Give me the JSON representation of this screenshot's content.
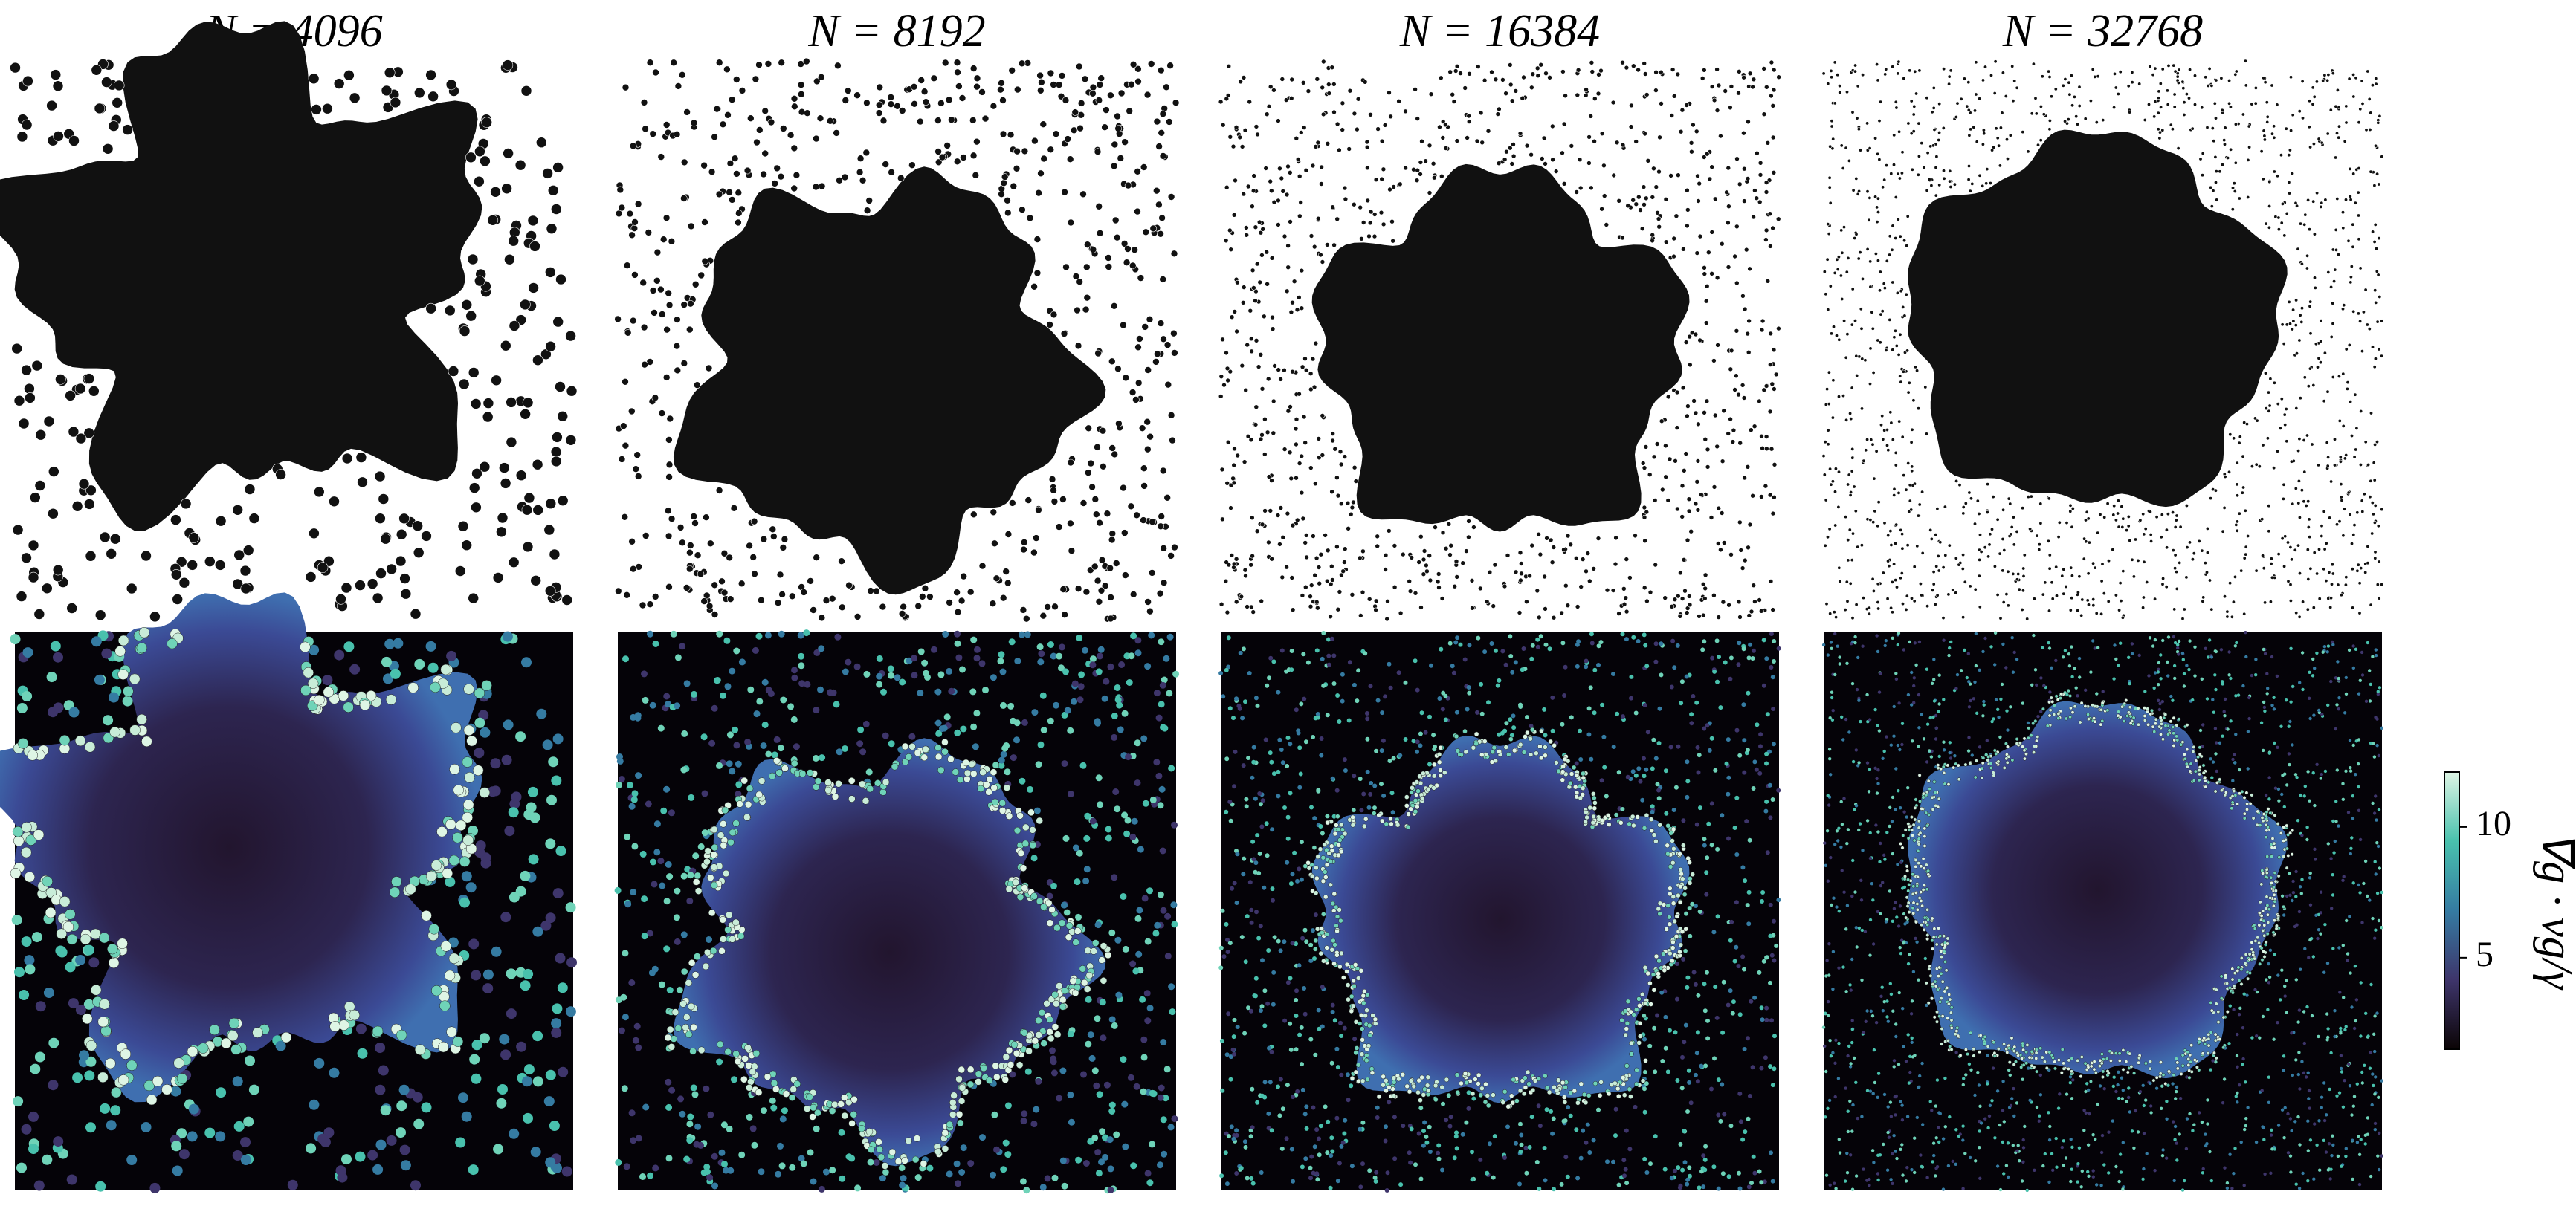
{
  "panels": [
    {
      "title": "N = 4096"
    },
    {
      "title": "N = 8192"
    },
    {
      "title": "N = 16384"
    },
    {
      "title": "N = 32768"
    }
  ],
  "colorbar": {
    "label": "∇g · vg/γ",
    "lim": [
      1.5,
      12.1
    ],
    "ticks": [
      5,
      10
    ]
  }
}
